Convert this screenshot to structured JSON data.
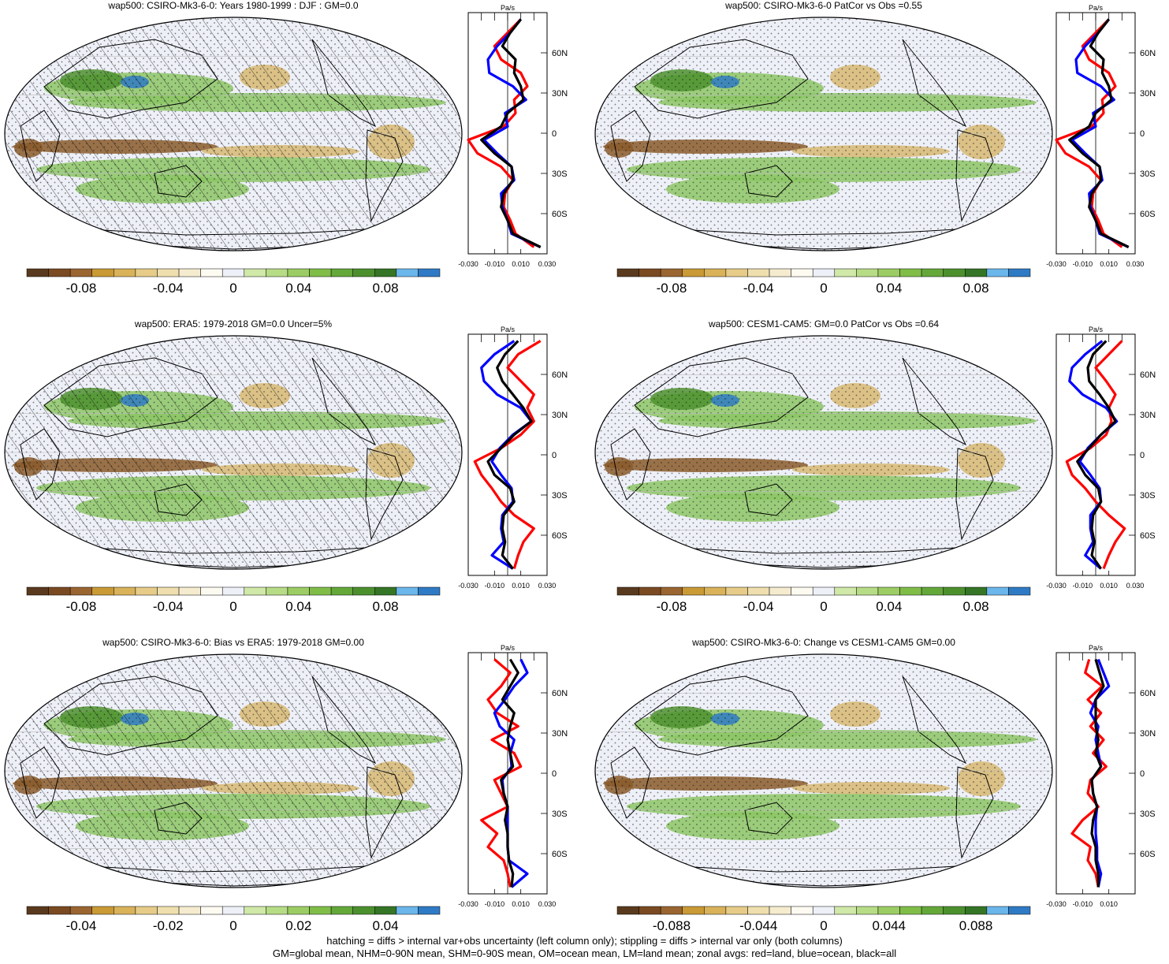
{
  "colorbar_colors": [
    "#5a3a1e",
    "#7a4a22",
    "#9a6530",
    "#c99a35",
    "#d9b25a",
    "#e6cc88",
    "#efdfae",
    "#f5ecd0",
    "#fdfbf1",
    "#eef0f8",
    "#d0e8a8",
    "#b7dc86",
    "#9ccd64",
    "#80bd48",
    "#64a83a",
    "#4c902e",
    "#357526",
    "#6bb6ea",
    "#2f7ac4"
  ],
  "map_palette": {
    "ocean_base": "#eef0f8",
    "land_line": "#000000",
    "subsidence": "#8a5a2a",
    "subsidence_mid": "#d7b872",
    "ascent": "#8cc665",
    "ascent_strong": "#4c902e",
    "ascent_max": "#2f7ac4"
  },
  "zonal_colors": {
    "land": "#ff0000",
    "ocean": "#0000ff",
    "all": "#000000"
  },
  "profile_unit": "Pa/s",
  "lat_ticks": [
    "60N",
    "30N",
    "0",
    "30S",
    "60S"
  ],
  "lat_values": [
    60,
    30,
    0,
    -30,
    -60
  ],
  "panels": [
    {
      "id": "p1",
      "title": "wap500: CSIRO-Mk3-6-0: Years 1980-1999 : DJF : GM=0.0",
      "colorbar_labels": [
        "-0.08",
        "-0.04",
        "0",
        "0.04",
        "0.08"
      ],
      "profile_ticks": [
        "-0.030",
        "-0.010",
        "0.010",
        "0.030"
      ],
      "hatching": true,
      "stippling": true,
      "show_zero_line": true
    },
    {
      "id": "p2",
      "title": "wap500: CSIRO-Mk3-6-0 PatCor vs Obs =0.55",
      "colorbar_labels": [
        "-0.08",
        "-0.04",
        "0",
        "0.04",
        "0.08"
      ],
      "profile_ticks": [
        "-0.030",
        "-0.010",
        "0.010",
        "0.030"
      ],
      "hatching": false,
      "stippling": true,
      "show_zero_line": true
    },
    {
      "id": "p3",
      "title": "wap500: ERA5: 1979-2018 GM=0.0 Uncer=5%",
      "colorbar_labels": [
        "-0.08",
        "-0.04",
        "0",
        "0.04",
        "0.08"
      ],
      "profile_ticks": [
        "-0.030",
        "-0.010",
        "0.010",
        "0.030"
      ],
      "hatching": true,
      "stippling": true,
      "show_zero_line": true
    },
    {
      "id": "p4",
      "title": "wap500: CESM1-CAM5: GM=0.0 PatCor vs Obs =0.64",
      "colorbar_labels": [
        "-0.08",
        "-0.04",
        "0",
        "0.04",
        "0.08"
      ],
      "profile_ticks": [
        "-0.030",
        "-0.010",
        "0.010",
        "0.030"
      ],
      "hatching": false,
      "stippling": true,
      "show_zero_line": true
    },
    {
      "id": "p5",
      "title": "wap500: CSIRO-Mk3-6-0: Bias vs ERA5: 1979-2018 GM=0.00",
      "colorbar_labels": [
        "-0.04",
        "-0.02",
        "0",
        "0.02",
        "0.04"
      ],
      "profile_ticks": [
        "-0.030",
        "-0.010",
        "0.010",
        "0.030"
      ],
      "hatching": true,
      "stippling": true,
      "show_zero_line": true
    },
    {
      "id": "p6",
      "title": "wap500: CSIRO-Mk3-6-0: Change vs CESM1-CAM5 GM=0.00",
      "colorbar_labels": [
        "-0.088",
        "-0.044",
        "0",
        "0.044",
        "0.088"
      ],
      "profile_ticks": [
        "-0.030",
        "-0.010",
        "0.010"
      ],
      "hatching": false,
      "stippling": true,
      "show_zero_line": false
    }
  ],
  "footer": {
    "line1": "hatching = diffs > internal var+obs uncertainty (left column only); stippling = diffs > internal var only (both columns)",
    "line2": "GM=global mean, NHM=0-90N mean, SHM=0-90S mean, OM=ocean mean, LM=land mean; zonal avgs: red=land, blue=ocean, black=all"
  },
  "chart_data": [
    {
      "type": "heatmap",
      "panel": "p1",
      "variable": "wap500",
      "unit": "Pa/s",
      "title": "wap500: CSIRO-Mk3-6-0: Years 1980-1999 : DJF : GM=0.0"
    },
    {
      "type": "line",
      "panel": "p1",
      "ylabel": "",
      "xlabel": "Pa/s",
      "xlim": [
        -0.03,
        0.03
      ],
      "lat": [
        85,
        75,
        65,
        55,
        45,
        35,
        25,
        15,
        5,
        -5,
        -15,
        -25,
        -35,
        -45,
        -55,
        -65,
        -75,
        -85
      ],
      "series": [
        {
          "name": "land",
          "values": [
            0.01,
            0.0,
            -0.01,
            -0.005,
            0.01,
            0.015,
            0.005,
            0.006,
            -0.003,
            -0.033,
            -0.023,
            -0.005,
            0.004,
            -0.002,
            -0.003,
            0.002,
            0.006,
            0.02
          ]
        },
        {
          "name": "ocean",
          "values": [
            0.01,
            0.002,
            -0.008,
            -0.015,
            -0.014,
            0.004,
            0.014,
            -0.002,
            0.0,
            -0.018,
            -0.008,
            0.003,
            0.005,
            -0.005,
            -0.004,
            0.0,
            0.003,
            0.025
          ]
        },
        {
          "name": "all",
          "values": [
            0.01,
            0.002,
            -0.004,
            0.006,
            0.005,
            0.01,
            0.012,
            0.0,
            -0.005,
            -0.02,
            -0.01,
            0.003,
            0.004,
            -0.003,
            -0.005,
            0.0,
            0.004,
            0.025
          ]
        }
      ]
    },
    {
      "type": "heatmap",
      "panel": "p2",
      "variable": "wap500",
      "unit": "Pa/s",
      "title": "wap500: CSIRO-Mk3-6-0 PatCor vs Obs =0.55"
    },
    {
      "type": "line",
      "panel": "p2",
      "xlabel": "Pa/s",
      "xlim": [
        -0.03,
        0.03
      ],
      "lat": [
        85,
        75,
        65,
        55,
        45,
        35,
        25,
        15,
        5,
        -5,
        -15,
        -25,
        -35,
        -45,
        -55,
        -65,
        -75,
        -85
      ],
      "series": [
        {
          "name": "land",
          "values": [
            0.01,
            0.0,
            -0.01,
            -0.005,
            0.01,
            0.015,
            0.005,
            0.006,
            -0.003,
            -0.033,
            -0.023,
            -0.005,
            0.004,
            -0.002,
            -0.003,
            0.002,
            0.006,
            0.02
          ]
        },
        {
          "name": "ocean",
          "values": [
            0.01,
            0.002,
            -0.008,
            -0.015,
            -0.014,
            0.004,
            0.014,
            -0.002,
            0.0,
            -0.018,
            -0.008,
            0.003,
            0.005,
            -0.005,
            -0.004,
            0.0,
            0.003,
            0.025
          ]
        },
        {
          "name": "all",
          "values": [
            0.01,
            0.002,
            -0.004,
            0.006,
            0.005,
            0.01,
            0.012,
            0.0,
            -0.005,
            -0.02,
            -0.01,
            0.003,
            0.004,
            -0.003,
            -0.005,
            0.0,
            0.004,
            0.025
          ]
        }
      ]
    },
    {
      "type": "heatmap",
      "panel": "p3",
      "variable": "wap500",
      "unit": "Pa/s",
      "title": "wap500: ERA5: 1979-2018 GM=0.0 Uncer=5%"
    },
    {
      "type": "line",
      "panel": "p3",
      "xlabel": "Pa/s",
      "xlim": [
        -0.03,
        0.03
      ],
      "lat": [
        85,
        75,
        65,
        55,
        45,
        35,
        25,
        15,
        5,
        -5,
        -15,
        -25,
        -35,
        -45,
        -55,
        -65,
        -75,
        -85
      ],
      "series": [
        {
          "name": "land",
          "values": [
            0.025,
            0.008,
            0.0,
            0.01,
            0.02,
            0.015,
            0.02,
            0.01,
            -0.005,
            -0.025,
            -0.02,
            -0.012,
            -0.005,
            0.005,
            0.02,
            0.012,
            0.008,
            0.005
          ]
        },
        {
          "name": "ocean",
          "values": [
            0.005,
            -0.01,
            -0.02,
            -0.018,
            -0.008,
            0.01,
            0.018,
            0.004,
            -0.006,
            -0.012,
            -0.005,
            0.003,
            0.004,
            -0.004,
            -0.005,
            -0.003,
            -0.012,
            0.004
          ]
        },
        {
          "name": "all",
          "values": [
            0.008,
            -0.002,
            -0.008,
            -0.004,
            0.004,
            0.012,
            0.018,
            0.005,
            -0.005,
            -0.015,
            -0.01,
            0.002,
            0.005,
            -0.003,
            -0.004,
            -0.002,
            -0.004,
            0.004
          ]
        }
      ]
    },
    {
      "type": "heatmap",
      "panel": "p4",
      "variable": "wap500",
      "unit": "Pa/s",
      "title": "wap500: CESM1-CAM5: GM=0.0 PatCor vs Obs =0.64"
    },
    {
      "type": "line",
      "panel": "p4",
      "xlabel": "Pa/s",
      "xlim": [
        -0.03,
        0.03
      ],
      "lat": [
        85,
        75,
        65,
        55,
        45,
        35,
        25,
        15,
        5,
        -5,
        -15,
        -25,
        -35,
        -45,
        -55,
        -65,
        -75,
        -85
      ],
      "series": [
        {
          "name": "land",
          "values": [
            0.02,
            0.01,
            0.0,
            0.008,
            0.015,
            0.01,
            0.012,
            0.008,
            -0.004,
            -0.022,
            -0.018,
            -0.008,
            0.0,
            0.01,
            0.022,
            0.015,
            0.01,
            0.006
          ]
        },
        {
          "name": "ocean",
          "values": [
            0.005,
            -0.008,
            -0.018,
            -0.02,
            -0.01,
            0.008,
            0.016,
            0.004,
            -0.006,
            -0.012,
            -0.004,
            0.003,
            0.004,
            -0.004,
            -0.004,
            -0.002,
            -0.008,
            0.004
          ]
        },
        {
          "name": "all",
          "values": [
            0.008,
            -0.002,
            -0.006,
            -0.005,
            0.003,
            0.01,
            0.015,
            0.004,
            -0.005,
            -0.014,
            -0.008,
            0.002,
            0.004,
            -0.002,
            -0.003,
            -0.001,
            -0.003,
            0.004
          ]
        }
      ]
    },
    {
      "type": "heatmap",
      "panel": "p5",
      "variable": "wap500",
      "unit": "Pa/s",
      "title": "wap500: CSIRO-Mk3-6-0: Bias vs ERA5: 1979-2018 GM=0.00"
    },
    {
      "type": "line",
      "panel": "p5",
      "xlabel": "Pa/s",
      "xlim": [
        -0.03,
        0.03
      ],
      "lat": [
        85,
        75,
        65,
        55,
        45,
        35,
        25,
        15,
        5,
        -5,
        -15,
        -25,
        -35,
        -45,
        -55,
        -65,
        -75,
        -85
      ],
      "series": [
        {
          "name": "land",
          "values": [
            -0.01,
            0.002,
            -0.005,
            -0.015,
            -0.008,
            0.008,
            -0.012,
            0.005,
            0.01,
            -0.01,
            -0.005,
            0.0,
            -0.02,
            -0.008,
            -0.015,
            -0.003,
            0.0,
            0.002
          ]
        },
        {
          "name": "ocean",
          "values": [
            0.01,
            0.015,
            0.005,
            -0.002,
            -0.01,
            -0.006,
            0.005,
            0.002,
            0.003,
            -0.004,
            -0.003,
            0.0,
            0.0,
            0.0,
            0.0,
            0.001,
            0.015,
            0.003
          ]
        },
        {
          "name": "all",
          "values": [
            0.002,
            0.008,
            0.002,
            -0.004,
            0.005,
            0.002,
            0.0,
            0.002,
            0.004,
            -0.005,
            -0.003,
            0.0,
            -0.002,
            0.0,
            0.0,
            0.001,
            0.004,
            0.003
          ]
        }
      ]
    },
    {
      "type": "heatmap",
      "panel": "p6",
      "variable": "wap500",
      "unit": "Pa/s",
      "title": "wap500: CSIRO-Mk3-6-0: Change vs CESM1-CAM5 GM=0.00"
    },
    {
      "type": "line",
      "panel": "p6",
      "xlabel": "Pa/s",
      "xlim": [
        -0.03,
        0.03
      ],
      "lat": [
        85,
        75,
        65,
        55,
        45,
        35,
        25,
        15,
        5,
        -5,
        -15,
        -25,
        -35,
        -45,
        -55,
        -65,
        -75,
        -85
      ],
      "series": [
        {
          "name": "land",
          "values": [
            -0.005,
            -0.008,
            0.005,
            -0.006,
            0.004,
            -0.004,
            0.006,
            -0.002,
            0.008,
            -0.004,
            -0.006,
            0.002,
            -0.01,
            -0.018,
            -0.004,
            -0.006,
            0.0,
            0.002
          ]
        },
        {
          "name": "ocean",
          "values": [
            0.002,
            0.006,
            0.01,
            0.0,
            -0.004,
            0.002,
            0.0,
            0.002,
            0.004,
            -0.003,
            -0.002,
            0.001,
            0.0,
            0.0,
            0.001,
            0.001,
            0.004,
            0.002
          ]
        },
        {
          "name": "all",
          "values": [
            0.0,
            0.003,
            0.006,
            0.0,
            0.0,
            0.0,
            0.002,
            0.0,
            0.004,
            -0.003,
            -0.002,
            0.001,
            -0.002,
            -0.003,
            0.0,
            0.0,
            0.002,
            0.002
          ]
        }
      ]
    }
  ]
}
